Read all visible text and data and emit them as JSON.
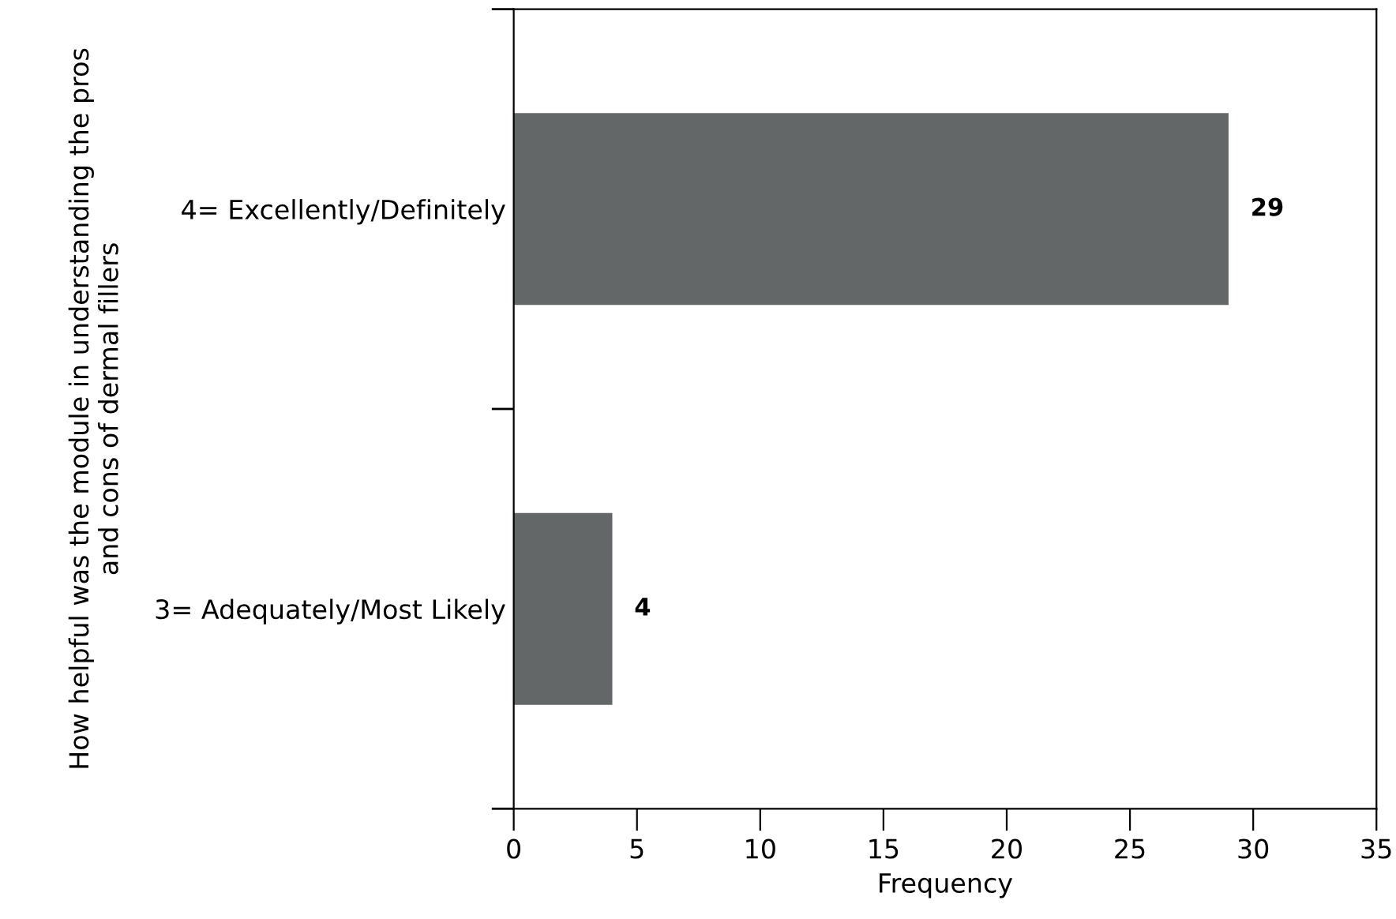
{
  "chart_data": {
    "type": "bar",
    "orientation": "horizontal",
    "categories": [
      "4= Excellently/Definitely",
      "3= Adequately/Most Likely"
    ],
    "values": [
      29,
      4
    ],
    "color": "#646768",
    "xlabel": "Frequency",
    "ylabel": "How helpful was the module in understanding the pros\nand cons of dermal fillers",
    "xlim": [
      0,
      35
    ],
    "xticks": [
      0,
      5,
      10,
      15,
      20,
      25,
      30,
      35
    ],
    "data_labels": true,
    "grid": false,
    "legend": false
  }
}
